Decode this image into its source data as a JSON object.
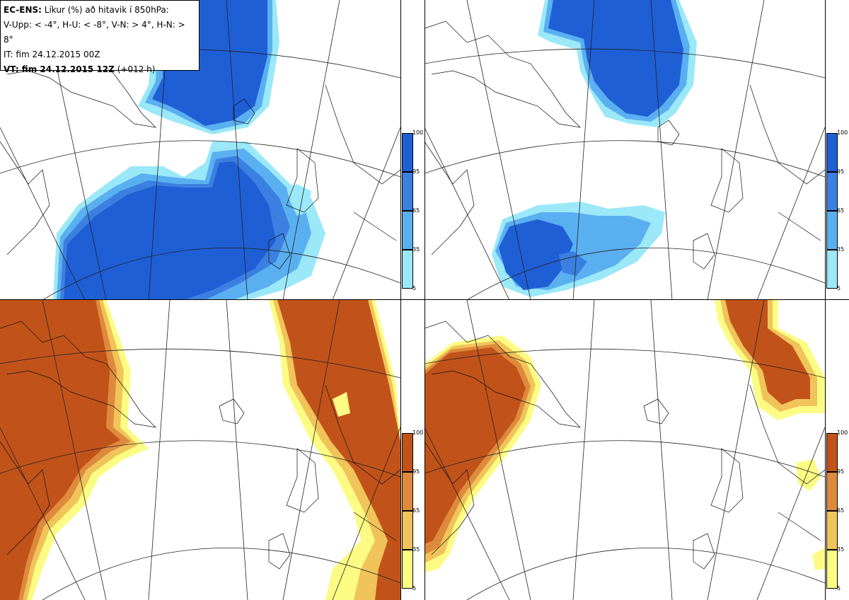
{
  "header": {
    "model": "EC-ENS:",
    "line1": "Líkur (%) að hitavik í 850hPa:",
    "line2": "V-Upp: < -4°, H-U: < -8°, V-N: > 4°, H-N: > 8°",
    "line3": "IT: fim 24.12.2015 00Z",
    "vt_label": "VT: fim 24.12.2015 12Z",
    "vt_offset": "(+012 h)"
  },
  "panels": [
    {
      "id": "V-Upp",
      "palette": "blue"
    },
    {
      "id": "H-U",
      "palette": "blue"
    },
    {
      "id": "V-N",
      "palette": "orange"
    },
    {
      "id": "H-N",
      "palette": "orange"
    }
  ],
  "colorbar": {
    "ticks": [
      "100",
      "95",
      "65",
      "35",
      "5"
    ],
    "blue": [
      "#1f5fd6",
      "#3b80e0",
      "#5aaff0",
      "#9be8f8"
    ],
    "orange": [
      "#c1531a",
      "#de8a3c",
      "#f0c45a",
      "#fcfc84"
    ]
  }
}
